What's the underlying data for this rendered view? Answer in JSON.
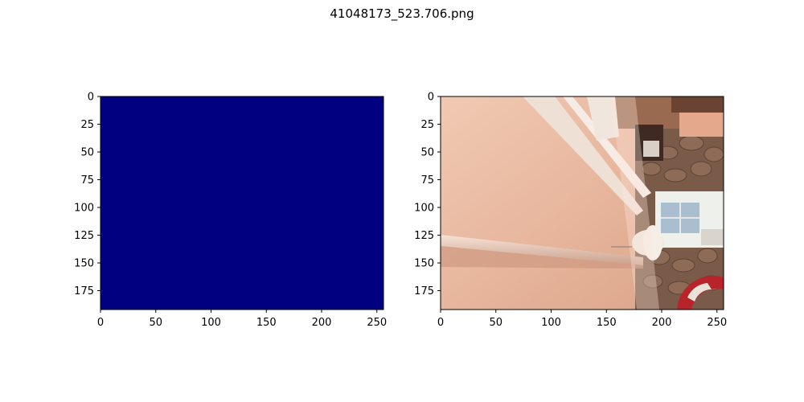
{
  "title": "41048173_523.706.png",
  "colors": {
    "background": "#ffffff",
    "axis": "#000000",
    "heatmap_fill": "#000080"
  },
  "chart_data": [
    {
      "type": "heatmap",
      "title": "",
      "xlabel": "",
      "ylabel": "",
      "xlim": [
        0,
        256
      ],
      "ylim": [
        192,
        0
      ],
      "x_ticks": [
        0,
        50,
        100,
        150,
        200,
        250
      ],
      "y_ticks": [
        0,
        25,
        50,
        75,
        100,
        125,
        150,
        175
      ],
      "uniform_value_color": "#000080",
      "grid": false,
      "legend": "none"
    },
    {
      "type": "image",
      "title": "",
      "xlabel": "",
      "ylabel": "",
      "xlim": [
        0,
        256
      ],
      "ylim": [
        192,
        0
      ],
      "x_ticks": [
        0,
        50,
        100,
        150,
        200,
        250
      ],
      "y_ticks": [
        0,
        25,
        50,
        75,
        100,
        125,
        150,
        175
      ],
      "image_content": "rotated photo of an interior: pink wall with white molding shelf, stone wall, window and a life ring",
      "grid": false,
      "legend": "none"
    }
  ]
}
